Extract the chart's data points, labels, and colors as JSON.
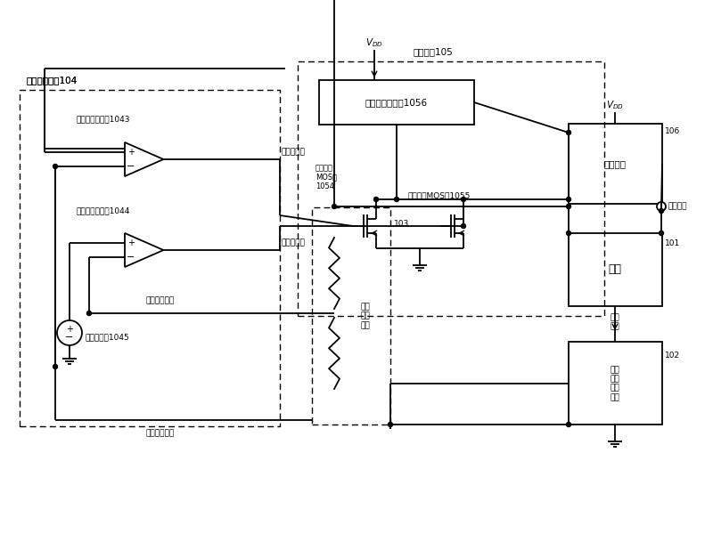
{
  "bg": "#ffffff",
  "lw": 1.3,
  "labels": {
    "104_title": "比较放大单元104",
    "105_title": "选择单元105",
    "1043": "电流环路放大器1043",
    "1044": "电压环路放大器1044",
    "1045": "基准电压源1045",
    "1056": "共模电平子单元1056",
    "1054_label": "电流环路\nMOS管\n1054",
    "1055_label": "电压环路MOS剳1055",
    "106": "106",
    "101": "101",
    "102": "102",
    "103": "103",
    "vcr": "压控电阵",
    "load": "负载",
    "cu_unit": "电流\n采样\n转换\n单元",
    "vu_unit": "电压\n采样\n单元",
    "current_out": "电流输出端",
    "voltage_out": "电压输出端",
    "out_v": "输出电压",
    "out_i_top": "输出",
    "out_i_bot": "电流",
    "v_sig": "电压采样信号",
    "i_sig": "电流采样信号"
  }
}
